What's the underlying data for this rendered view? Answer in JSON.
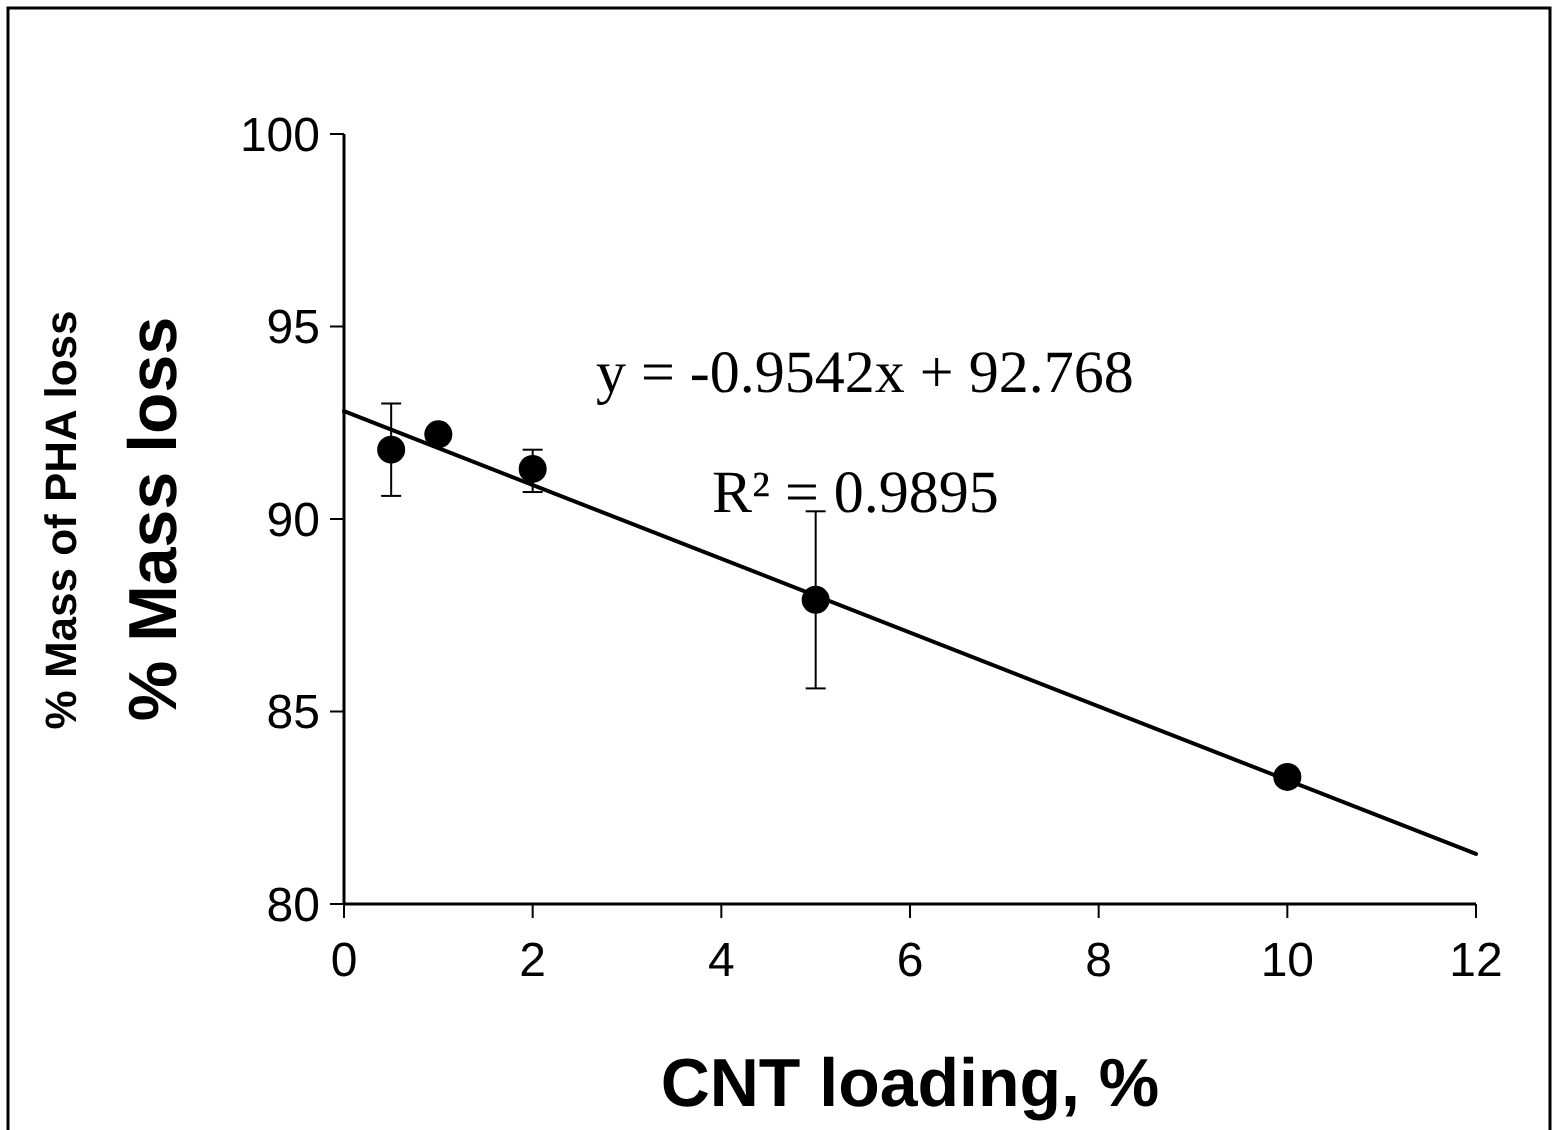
{
  "chart_data": {
    "type": "scatter",
    "xlabel": "CNT loading, %",
    "ylabel": "% Mass loss",
    "annotations": [
      "y = -0.9542x + 92.768",
      "R² = 0.9895",
      "% Mass of PHA loss"
    ],
    "xlim": [
      0,
      12
    ],
    "xticks": [
      0,
      2,
      4,
      6,
      8,
      10,
      12
    ],
    "ylim": [
      80,
      100
    ],
    "yticks": [
      80,
      85,
      90,
      95,
      100
    ],
    "grid": false,
    "marker": "circle",
    "series": [
      {
        "color": "#000000",
        "x": [
          0.5,
          1,
          2,
          5,
          10
        ],
        "values": [
          91.8,
          92.2,
          91.3,
          87.9,
          83.3
        ],
        "errors": [
          [
            90.6,
            93
          ],
          null,
          [
            90.7,
            91.8
          ],
          [
            85.6,
            90.2
          ],
          null
        ]
      },
      {
        "type": "line",
        "color": "#000000",
        "x": [
          0,
          12
        ],
        "values": [
          92.8,
          81.3
        ],
        "marker": "none",
        "line_style": "solid"
      }
    ]
  }
}
